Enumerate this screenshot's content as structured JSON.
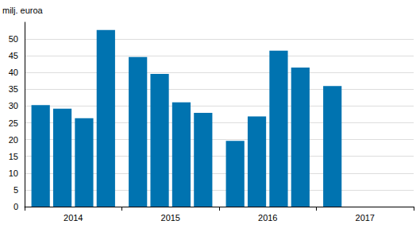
{
  "chart_data": {
    "type": "bar",
    "y_label": "milj. euroa",
    "categories": [
      "2014",
      "2015",
      "2016",
      "2017"
    ],
    "series": [
      {
        "color": "#0073b0",
        "values": [
          30.3,
          44.6,
          19.6,
          36.0
        ]
      },
      {
        "color": "#0073b0",
        "values": [
          29.2,
          39.6,
          26.9,
          null
        ]
      },
      {
        "color": "#0073b0",
        "values": [
          26.4,
          31.1,
          46.5,
          null
        ]
      },
      {
        "color": "#0073b0",
        "values": [
          52.7,
          28.0,
          41.5,
          null
        ]
      }
    ],
    "ylim": [
      0,
      55
    ],
    "yticks": [
      0,
      5,
      10,
      15,
      20,
      25,
      30,
      35,
      40,
      45,
      50
    ],
    "grid": true
  }
}
